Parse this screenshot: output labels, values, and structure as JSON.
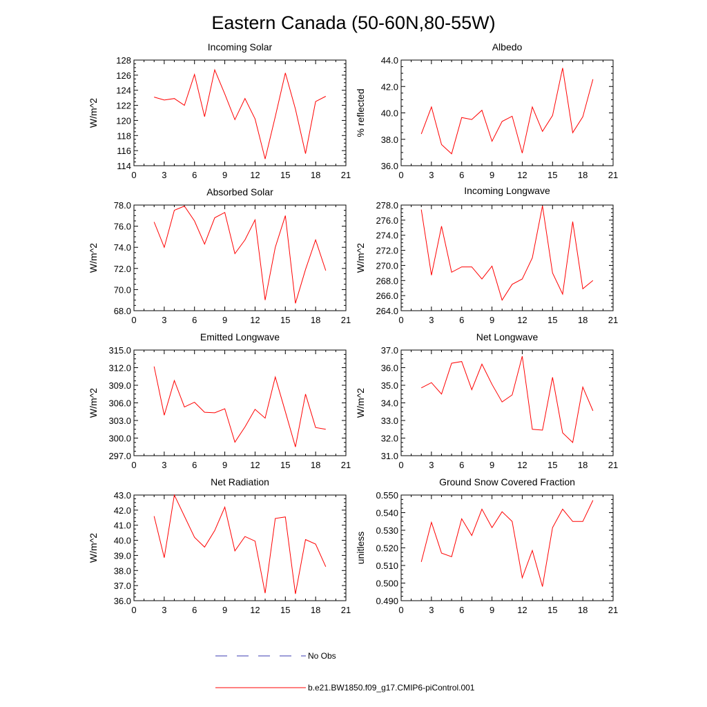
{
  "title": "Eastern Canada (50-60N,80-55W)",
  "colors": {
    "model": "#ff0000",
    "obs": "#3b3bb0",
    "axis": "#000000"
  },
  "legend": {
    "obs_label": "No Obs",
    "model_label": "b.e21.BW1850.f09_g17.CMIP6-piControl.001"
  },
  "chart_data": [
    {
      "type": "line",
      "title": "Incoming Solar",
      "ylabel": "W/m^2",
      "xlim": [
        0,
        21
      ],
      "xticks": [
        "0",
        "3",
        "6",
        "9",
        "12",
        "15",
        "18",
        "21"
      ],
      "ylim": [
        114,
        128
      ],
      "yticks": [
        "114",
        "116",
        "118",
        "120",
        "122",
        "124",
        "126",
        "128"
      ],
      "series": [
        {
          "name": "b.e21.BW1850.f09_g17.CMIP6-piControl.001",
          "x": [
            2,
            3,
            4,
            5,
            6,
            7,
            8,
            9,
            10,
            11,
            12,
            13,
            14,
            15,
            16,
            17,
            18,
            19
          ],
          "values": [
            123.1,
            122.7,
            122.9,
            122.0,
            126.1,
            120.5,
            126.7,
            123.5,
            120.1,
            122.9,
            120.2,
            114.9,
            120.5,
            126.3,
            121.5,
            115.6,
            122.5,
            123.2
          ]
        }
      ]
    },
    {
      "type": "line",
      "title": "Albedo",
      "ylabel": "% reflected",
      "xlim": [
        0,
        21
      ],
      "xticks": [
        "0",
        "3",
        "6",
        "9",
        "12",
        "15",
        "18",
        "21"
      ],
      "ylim": [
        36,
        44
      ],
      "yticks": [
        "36.0",
        "38.0",
        "40.0",
        "42.0",
        "44.0"
      ],
      "series": [
        {
          "name": "b.e21.BW1850.f09_g17.CMIP6-piControl.001",
          "x": [
            2,
            3,
            4,
            5,
            6,
            7,
            8,
            9,
            10,
            11,
            12,
            13,
            14,
            15,
            16,
            17,
            18,
            19
          ],
          "values": [
            38.4,
            40.45,
            37.6,
            36.9,
            39.65,
            39.5,
            40.2,
            37.85,
            39.35,
            39.75,
            36.95,
            40.45,
            38.6,
            39.8,
            43.4,
            38.5,
            39.7,
            42.55
          ]
        }
      ]
    },
    {
      "type": "line",
      "title": "Absorbed Solar",
      "ylabel": "W/m^2",
      "xlim": [
        0,
        21
      ],
      "xticks": [
        "0",
        "3",
        "6",
        "9",
        "12",
        "15",
        "18",
        "21"
      ],
      "ylim": [
        68,
        78
      ],
      "yticks": [
        "68.0",
        "70.0",
        "72.0",
        "74.0",
        "76.0",
        "78.0"
      ],
      "series": [
        {
          "name": "b.e21.BW1850.f09_g17.CMIP6-piControl.001",
          "x": [
            2,
            3,
            4,
            5,
            6,
            7,
            8,
            9,
            10,
            11,
            12,
            13,
            14,
            15,
            16,
            17,
            18,
            19
          ],
          "values": [
            76.4,
            74.0,
            77.5,
            77.9,
            76.5,
            74.3,
            76.8,
            77.3,
            73.4,
            74.7,
            76.6,
            69.0,
            74.0,
            77.0,
            68.7,
            71.9,
            74.7,
            71.8
          ]
        }
      ]
    },
    {
      "type": "line",
      "title": "Incoming Longwave",
      "ylabel": "W/m^2",
      "xlim": [
        0,
        21
      ],
      "xticks": [
        "0",
        "3",
        "6",
        "9",
        "12",
        "15",
        "18",
        "21"
      ],
      "ylim": [
        264,
        278
      ],
      "yticks": [
        "264.0",
        "266.0",
        "268.0",
        "270.0",
        "272.0",
        "274.0",
        "276.0",
        "278.0"
      ],
      "series": [
        {
          "name": "b.e21.BW1850.f09_g17.CMIP6-piControl.001",
          "x": [
            2,
            3,
            4,
            5,
            6,
            7,
            8,
            9,
            10,
            11,
            12,
            13,
            14,
            15,
            16,
            17,
            18,
            19
          ],
          "values": [
            277.4,
            268.7,
            275.2,
            269.1,
            269.8,
            269.8,
            268.2,
            269.9,
            265.4,
            267.5,
            268.2,
            271.0,
            277.9,
            269.0,
            266.2,
            275.8,
            266.9,
            268.0
          ]
        }
      ]
    },
    {
      "type": "line",
      "title": "Emitted Longwave",
      "ylabel": "W/m^2",
      "xlim": [
        0,
        21
      ],
      "xticks": [
        "0",
        "3",
        "6",
        "9",
        "12",
        "15",
        "18",
        "21"
      ],
      "ylim": [
        297,
        315
      ],
      "yticks": [
        "297.0",
        "300.0",
        "303.0",
        "306.0",
        "309.0",
        "312.0",
        "315.0"
      ],
      "series": [
        {
          "name": "b.e21.BW1850.f09_g17.CMIP6-piControl.001",
          "x": [
            2,
            3,
            4,
            5,
            6,
            7,
            8,
            9,
            10,
            11,
            12,
            13,
            14,
            15,
            16,
            17,
            18,
            19
          ],
          "values": [
            312.2,
            303.9,
            309.8,
            305.3,
            306.1,
            304.4,
            304.3,
            305.0,
            299.3,
            301.9,
            304.9,
            303.4,
            310.4,
            304.5,
            298.5,
            307.5,
            301.8,
            301.5
          ]
        }
      ]
    },
    {
      "type": "line",
      "title": "Net Longwave",
      "ylabel": "W/m^2",
      "xlim": [
        0,
        21
      ],
      "xticks": [
        "0",
        "3",
        "6",
        "9",
        "12",
        "15",
        "18",
        "21"
      ],
      "ylim": [
        31,
        37
      ],
      "yticks": [
        "31.0",
        "32.0",
        "33.0",
        "34.0",
        "35.0",
        "36.0",
        "37.0"
      ],
      "series": [
        {
          "name": "b.e21.BW1850.f09_g17.CMIP6-piControl.001",
          "x": [
            2,
            3,
            4,
            5,
            6,
            7,
            8,
            9,
            10,
            11,
            12,
            13,
            14,
            15,
            16,
            17,
            18,
            19
          ],
          "values": [
            34.85,
            35.15,
            34.5,
            36.25,
            36.35,
            34.75,
            36.2,
            35.05,
            34.05,
            34.45,
            36.65,
            32.5,
            32.45,
            35.45,
            32.3,
            31.75,
            34.9,
            33.55
          ]
        }
      ]
    },
    {
      "type": "line",
      "title": "Net Radiation",
      "ylabel": "W/m^2",
      "xlim": [
        0,
        21
      ],
      "xticks": [
        "0",
        "3",
        "6",
        "9",
        "12",
        "15",
        "18",
        "21"
      ],
      "ylim": [
        36,
        43
      ],
      "yticks": [
        "36.0",
        "37.0",
        "38.0",
        "39.0",
        "40.0",
        "41.0",
        "42.0",
        "43.0"
      ],
      "series": [
        {
          "name": "b.e21.BW1850.f09_g17.CMIP6-piControl.001",
          "x": [
            2,
            3,
            4,
            5,
            6,
            7,
            8,
            9,
            10,
            11,
            12,
            13,
            14,
            15,
            16,
            17,
            18,
            19
          ],
          "values": [
            41.6,
            38.85,
            43.0,
            41.6,
            40.2,
            39.55,
            40.65,
            42.2,
            39.3,
            40.25,
            39.95,
            36.5,
            41.45,
            41.55,
            36.45,
            40.05,
            39.75,
            38.25
          ]
        }
      ]
    },
    {
      "type": "line",
      "title": "Ground Snow Covered Fraction",
      "ylabel": "unitless",
      "xlim": [
        0,
        21
      ],
      "xticks": [
        "0",
        "3",
        "6",
        "9",
        "12",
        "15",
        "18",
        "21"
      ],
      "ylim": [
        0.49,
        0.55
      ],
      "yticks": [
        "0.490",
        "0.500",
        "0.510",
        "0.520",
        "0.530",
        "0.540",
        "0.550"
      ],
      "series": [
        {
          "name": "b.e21.BW1850.f09_g17.CMIP6-piControl.001",
          "x": [
            2,
            3,
            4,
            5,
            6,
            7,
            8,
            9,
            10,
            11,
            12,
            13,
            14,
            15,
            16,
            17,
            18,
            19
          ],
          "values": [
            0.512,
            0.5345,
            0.517,
            0.515,
            0.5365,
            0.527,
            0.542,
            0.5315,
            0.5405,
            0.535,
            0.503,
            0.5185,
            0.498,
            0.5315,
            0.542,
            0.535,
            0.535,
            0.547
          ]
        }
      ]
    }
  ]
}
